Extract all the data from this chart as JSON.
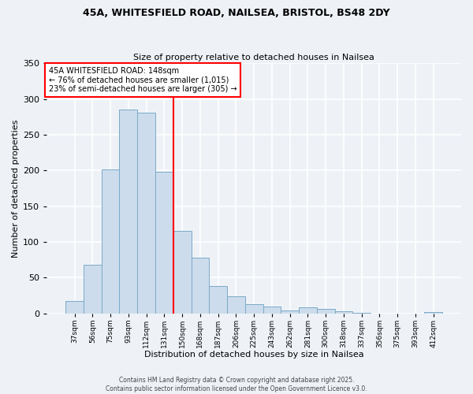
{
  "title_line1": "45A, WHITESFIELD ROAD, NAILSEA, BRISTOL, BS48 2DY",
  "title_line2": "Size of property relative to detached houses in Nailsea",
  "xlabel": "Distribution of detached houses by size in Nailsea",
  "ylabel": "Number of detached properties",
  "bar_labels": [
    "37sqm",
    "56sqm",
    "75sqm",
    "93sqm",
    "112sqm",
    "131sqm",
    "150sqm",
    "168sqm",
    "187sqm",
    "206sqm",
    "225sqm",
    "243sqm",
    "262sqm",
    "281sqm",
    "300sqm",
    "318sqm",
    "337sqm",
    "356sqm",
    "375sqm",
    "393sqm",
    "412sqm"
  ],
  "bar_heights": [
    17,
    68,
    201,
    285,
    281,
    198,
    115,
    78,
    38,
    24,
    13,
    9,
    4,
    8,
    6,
    3,
    1,
    0,
    0,
    0,
    2
  ],
  "bar_color": "#ccdcec",
  "bar_edge_color": "#7aaac8",
  "vline_index": 6,
  "vline_color": "red",
  "annotation_title": "45A WHITESFIELD ROAD: 148sqm",
  "annotation_line2": "← 76% of detached houses are smaller (1,015)",
  "annotation_line3": "23% of semi-detached houses are larger (305) →",
  "annotation_box_color": "white",
  "annotation_box_edge": "red",
  "ylim": [
    0,
    350
  ],
  "yticks": [
    0,
    50,
    100,
    150,
    200,
    250,
    300,
    350
  ],
  "footer_line1": "Contains HM Land Registry data © Crown copyright and database right 2025.",
  "footer_line2": "Contains public sector information licensed under the Open Government Licence v3.0.",
  "background_color": "#eef2f7",
  "grid_color": "#ffffff"
}
